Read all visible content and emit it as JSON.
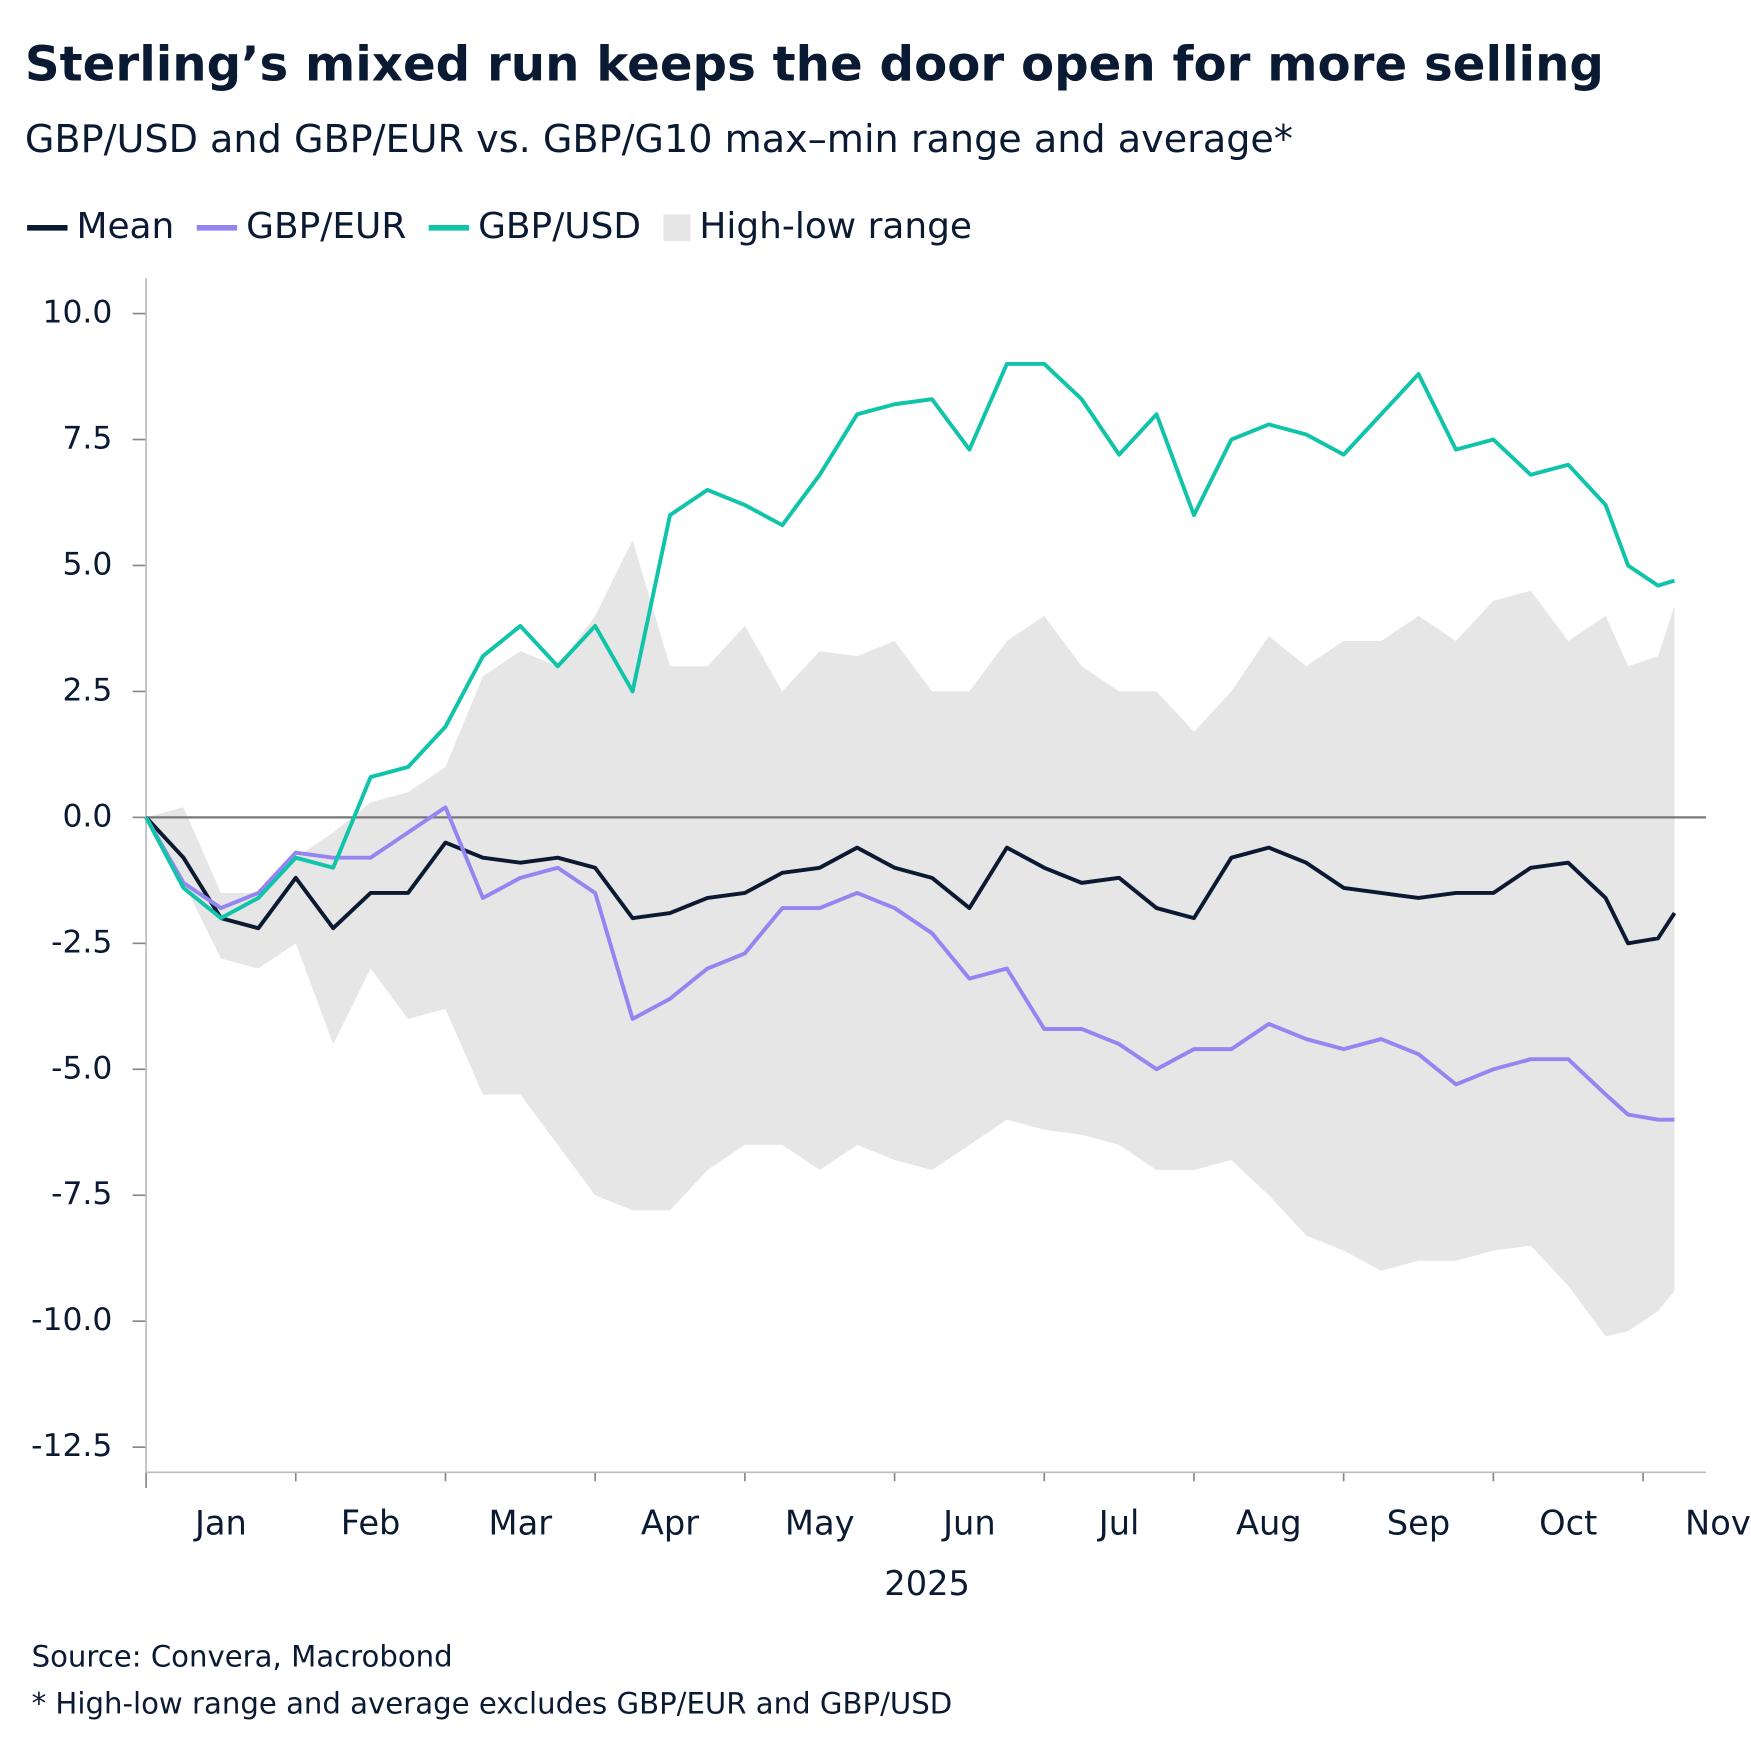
{
  "chart_data": {
    "type": "line",
    "title": "Sterling’s mixed run keeps the door open for more selling",
    "subtitle": "GBP/USD and GBP/EUR vs. GBP/G10 max–min range and average*",
    "xlabel": "2025",
    "notes": [
      "Source: Convera, Macrobond",
      "* High-low range and average excludes GBP/EUR and GBP/USD"
    ],
    "x": [
      0,
      0.25,
      0.5,
      0.75,
      1,
      1.25,
      1.5,
      1.75,
      2,
      2.25,
      2.5,
      2.75,
      3,
      3.25,
      3.5,
      3.75,
      4,
      4.25,
      4.5,
      4.75,
      5,
      5.25,
      5.5,
      5.75,
      6,
      6.25,
      6.5,
      6.75,
      7,
      7.25,
      7.5,
      7.75,
      8,
      8.25,
      8.5,
      8.75,
      9,
      9.25,
      9.5,
      9.75,
      9.9,
      10.1,
      10.21
    ],
    "series": [
      {
        "name": "High-low range",
        "type": "band",
        "color": "#e6e6e6",
        "high": [
          0,
          0.2,
          -1.5,
          -1.5,
          -0.8,
          -0.3,
          0.3,
          0.5,
          1.0,
          2.8,
          3.3,
          3.0,
          4.0,
          5.5,
          3.0,
          3.0,
          3.8,
          2.5,
          3.3,
          3.2,
          3.5,
          2.5,
          2.5,
          3.5,
          4.0,
          3.0,
          2.5,
          2.5,
          1.7,
          2.5,
          3.6,
          3.0,
          3.5,
          3.5,
          4.0,
          3.5,
          4.3,
          4.5,
          3.5,
          4.0,
          3.0,
          3.2,
          4.2
        ],
        "low": [
          0,
          -1.3,
          -2.8,
          -3.0,
          -2.5,
          -4.5,
          -3.0,
          -4.0,
          -3.8,
          -5.5,
          -5.5,
          -6.5,
          -7.5,
          -7.8,
          -7.8,
          -7.0,
          -6.5,
          -6.5,
          -7.0,
          -6.5,
          -6.8,
          -7.0,
          -6.5,
          -6.0,
          -6.2,
          -6.3,
          -6.5,
          -7.0,
          -7.0,
          -6.8,
          -7.5,
          -8.3,
          -8.6,
          -9.0,
          -8.8,
          -8.8,
          -8.6,
          -8.5,
          -9.3,
          -10.3,
          -10.2,
          -9.8,
          -9.4
        ]
      },
      {
        "name": "Mean",
        "color": "#0b1a33",
        "values": [
          0,
          -0.8,
          -2.0,
          -2.2,
          -1.2,
          -2.2,
          -1.5,
          -1.5,
          -0.5,
          -0.8,
          -0.9,
          -0.8,
          -1.0,
          -2.0,
          -1.9,
          -1.6,
          -1.5,
          -1.1,
          -1.0,
          -0.6,
          -1.0,
          -1.2,
          -1.8,
          -0.6,
          -1.0,
          -1.3,
          -1.2,
          -1.8,
          -2.0,
          -0.8,
          -0.6,
          -0.9,
          -1.4,
          -1.5,
          -1.6,
          -1.5,
          -1.5,
          -1.0,
          -0.9,
          -1.6,
          -2.5,
          -2.4,
          -1.9
        ]
      },
      {
        "name": "GBP/EUR",
        "color": "#9585f0",
        "values": [
          0,
          -1.3,
          -1.8,
          -1.5,
          -0.7,
          -0.8,
          -0.8,
          -0.3,
          0.2,
          -1.6,
          -1.2,
          -1.0,
          -1.5,
          -4.0,
          -3.6,
          -3.0,
          -2.7,
          -1.8,
          -1.8,
          -1.5,
          -1.8,
          -2.3,
          -3.2,
          -3.0,
          -4.2,
          -4.2,
          -4.5,
          -5.0,
          -4.6,
          -4.6,
          -4.1,
          -4.4,
          -4.6,
          -4.4,
          -4.7,
          -5.3,
          -5.0,
          -4.8,
          -4.8,
          -5.5,
          -5.9,
          -6.0,
          -6.0
        ]
      },
      {
        "name": "GBP/USD",
        "color": "#10c4aa",
        "values": [
          0,
          -1.4,
          -2.0,
          -1.6,
          -0.8,
          -1.0,
          0.8,
          1.0,
          1.8,
          3.2,
          3.8,
          3.0,
          3.8,
          2.5,
          6.0,
          6.5,
          6.2,
          5.8,
          6.8,
          8.0,
          8.2,
          8.3,
          7.3,
          9.0,
          9.0,
          8.3,
          7.2,
          8.0,
          6.0,
          7.5,
          7.8,
          7.6,
          7.2,
          8.0,
          8.8,
          7.3,
          7.5,
          6.8,
          7.0,
          6.2,
          5.0,
          4.6,
          4.7
        ]
      }
    ],
    "xlim": [
      0,
      10.42
    ],
    "xticks": [
      {
        "value": 0,
        "label": "Jan"
      },
      {
        "value": 1,
        "label": "Feb"
      },
      {
        "value": 2,
        "label": "Mar"
      },
      {
        "value": 3,
        "label": "Apr"
      },
      {
        "value": 4,
        "label": "May"
      },
      {
        "value": 5,
        "label": "Jun"
      },
      {
        "value": 6,
        "label": "Jul"
      },
      {
        "value": 7,
        "label": "Aug"
      },
      {
        "value": 8,
        "label": "Sep"
      },
      {
        "value": 9,
        "label": "Oct"
      },
      {
        "value": 10,
        "label": "Nov"
      }
    ],
    "ylim": [
      -13,
      10.7
    ],
    "yticks": [
      {
        "value": 10,
        "label": "10.0"
      },
      7.5,
      {
        "value": 5,
        "label": "5.0"
      },
      2.5,
      {
        "value": 0,
        "label": "0.0"
      },
      -2.5,
      {
        "value": -5,
        "label": "-5.0"
      },
      -7.5,
      {
        "value": -10,
        "label": "-10.0"
      },
      -12.5
    ],
    "hline": 0,
    "legend": "top-left"
  }
}
